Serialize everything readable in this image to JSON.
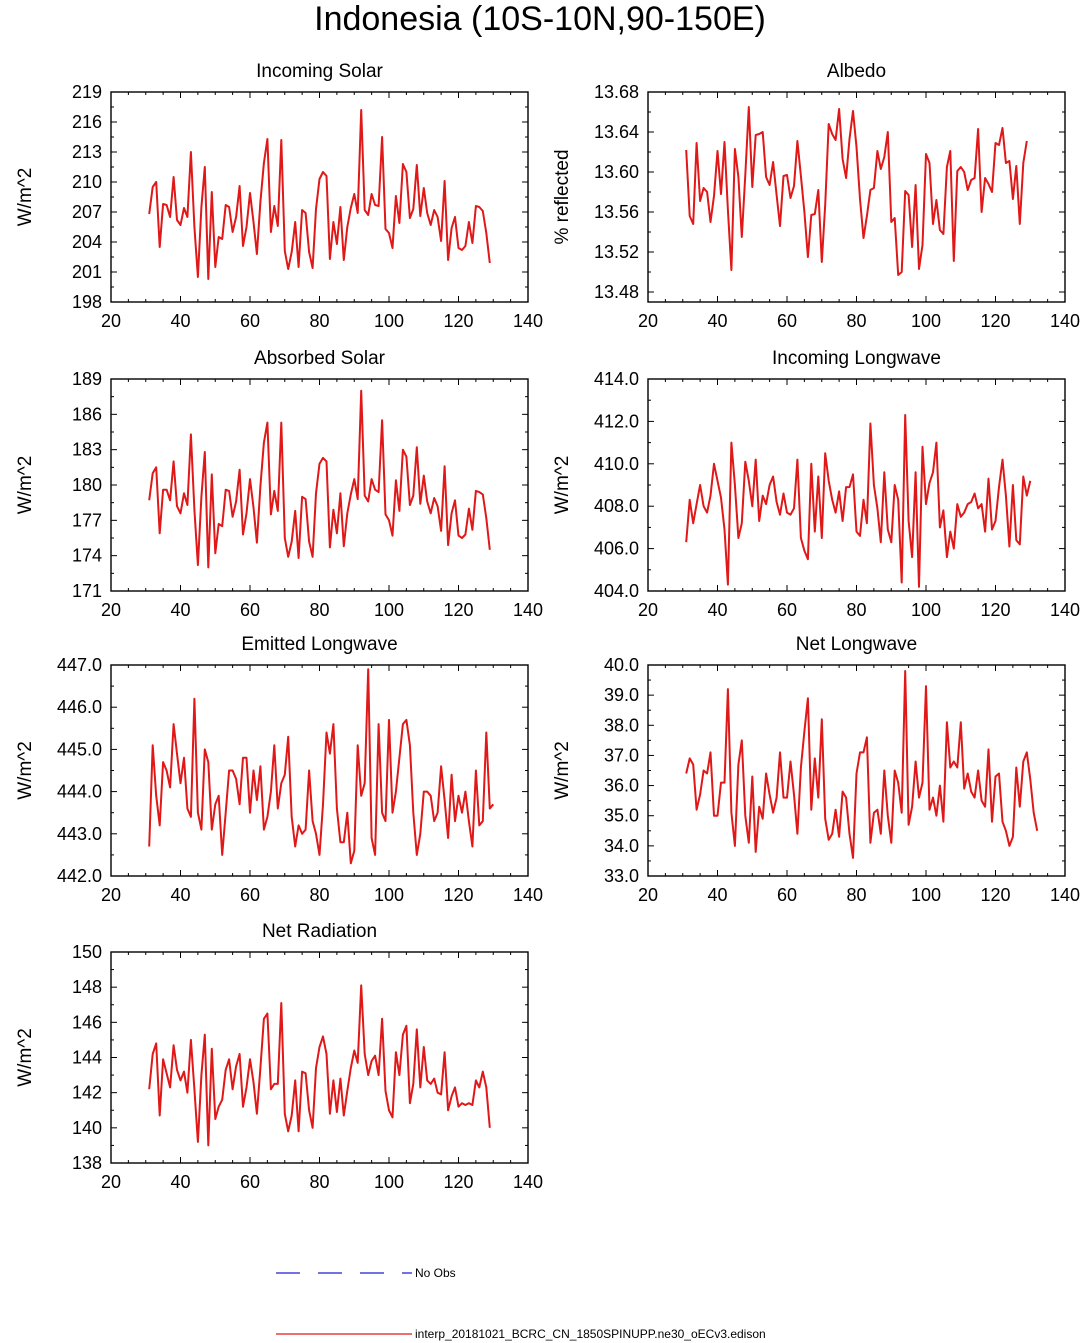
{
  "figure": {
    "title": "Indonesia (10S-10N,90-150E)",
    "legend": [
      {
        "label": "No Obs",
        "color": "#1f1fd0",
        "style": "dashed"
      },
      {
        "label": "interp_20181021_BCRC_CN_1850SPINUPP.ne30_oECv3.edison",
        "color": "#e01818",
        "style": "solid"
      }
    ]
  },
  "chart_data": [
    {
      "type": "line",
      "title": "Incoming Solar",
      "ylabel": "W/m^2",
      "xlabel": "",
      "xlim": [
        20,
        140
      ],
      "ylim": [
        198,
        219
      ],
      "xticks": [
        20,
        40,
        60,
        80,
        100,
        120,
        140
      ],
      "yticks": [
        198,
        201,
        204,
        207,
        210,
        213,
        216,
        219
      ],
      "ytick_labels": [
        "198",
        "201",
        "204",
        "207",
        "210",
        "213",
        "216",
        "219"
      ],
      "series": [
        {
          "name": "interp_20181021_BCRC_CN_1850SPINUPP.ne30_oECv3.edison",
          "x_start": 31,
          "x_step": 1,
          "values": [
            206.8,
            209.5,
            210.0,
            203.5,
            207.8,
            207.7,
            206.5,
            210.5,
            206.2,
            205.7,
            207.4,
            206.5,
            213.0,
            205.5,
            200.5,
            207.5,
            211.5,
            200.3,
            209.0,
            201.5,
            204.5,
            204.3,
            207.7,
            207.5,
            205.0,
            206.5,
            209.6,
            203.6,
            205.5,
            208.9,
            206.0,
            202.8,
            208.0,
            211.9,
            214.3,
            205.0,
            207.6,
            205.6,
            214.2,
            203.1,
            201.3,
            203.0,
            206.0,
            201.5,
            207.2,
            206.9,
            203.0,
            201.4,
            207.3,
            210.3,
            211.0,
            210.6,
            202.3,
            206.0,
            203.8,
            207.5,
            202.2,
            205.5,
            207.4,
            208.8,
            206.9,
            217.2,
            207.2,
            206.7,
            208.8,
            207.7,
            207.6,
            214.5,
            205.3,
            204.9,
            203.4,
            208.6,
            205.9,
            211.8,
            211.0,
            206.4,
            207.3,
            211.7,
            206.6,
            209.4,
            206.9,
            205.7,
            207.2,
            206.5,
            204.1,
            210.1,
            202.2,
            205.4,
            206.5,
            203.4,
            203.2,
            203.6,
            206.0,
            203.9,
            207.6,
            207.5,
            207.1,
            204.9,
            201.9
          ]
        }
      ]
    },
    {
      "type": "line",
      "title": "Albedo",
      "ylabel": "% reflected",
      "xlabel": "",
      "xlim": [
        20,
        140
      ],
      "ylim": [
        13.47,
        13.68
      ],
      "xticks": [
        20,
        40,
        60,
        80,
        100,
        120,
        140
      ],
      "yticks": [
        13.48,
        13.52,
        13.56,
        13.6,
        13.64,
        13.68
      ],
      "ytick_labels": [
        "13.48",
        "13.52",
        "13.56",
        "13.60",
        "13.64",
        "13.68"
      ],
      "series": [
        {
          "name": "interp_20181021_BCRC_CN_1850SPINUPP.ne30_oECv3.edison",
          "x_start": 31,
          "x_step": 1,
          "values": [
            13.622,
            13.556,
            13.548,
            13.629,
            13.571,
            13.584,
            13.58,
            13.55,
            13.576,
            13.621,
            13.578,
            13.63,
            13.562,
            13.502,
            13.623,
            13.595,
            13.535,
            13.597,
            13.665,
            13.585,
            13.637,
            13.638,
            13.64,
            13.595,
            13.587,
            13.61,
            13.577,
            13.546,
            13.596,
            13.597,
            13.574,
            13.586,
            13.631,
            13.596,
            13.56,
            13.515,
            13.557,
            13.558,
            13.582,
            13.51,
            13.567,
            13.648,
            13.638,
            13.632,
            13.663,
            13.613,
            13.594,
            13.633,
            13.661,
            13.625,
            13.573,
            13.534,
            13.556,
            13.582,
            13.584,
            13.621,
            13.603,
            13.615,
            13.64,
            13.55,
            13.554,
            13.497,
            13.5,
            13.581,
            13.577,
            13.525,
            13.587,
            13.503,
            13.527,
            13.618,
            13.609,
            13.548,
            13.572,
            13.542,
            13.538,
            13.605,
            13.621,
            13.511,
            13.601,
            13.605,
            13.6,
            13.582,
            13.592,
            13.594,
            13.643,
            13.56,
            13.594,
            13.588,
            13.58,
            13.629,
            13.627,
            13.644,
            13.609,
            13.611,
            13.573,
            13.606,
            13.548,
            13.609,
            13.631
          ]
        }
      ]
    },
    {
      "type": "line",
      "title": "Absorbed Solar",
      "ylabel": "W/m^2",
      "xlabel": "",
      "xlim": [
        20,
        140
      ],
      "ylim": [
        171,
        189
      ],
      "xticks": [
        20,
        40,
        60,
        80,
        100,
        120,
        140
      ],
      "yticks": [
        171,
        174,
        177,
        180,
        183,
        186,
        189
      ],
      "ytick_labels": [
        "171",
        "174",
        "177",
        "180",
        "183",
        "186",
        "189"
      ],
      "series": [
        {
          "name": "interp_20181021_BCRC_CN_1850SPINUPP.ne30_oECv3.edison",
          "x_start": 31,
          "x_step": 1,
          "values": [
            178.7,
            181.0,
            181.5,
            175.9,
            179.6,
            179.6,
            178.7,
            182.0,
            178.2,
            177.6,
            179.3,
            178.3,
            184.3,
            177.9,
            173.2,
            179.0,
            182.8,
            173.0,
            180.9,
            174.2,
            176.7,
            176.5,
            179.6,
            179.5,
            177.3,
            178.6,
            181.3,
            175.8,
            177.6,
            180.5,
            178.1,
            175.1,
            179.9,
            183.6,
            185.3,
            177.5,
            179.5,
            177.8,
            185.3,
            175.5,
            173.9,
            175.2,
            177.8,
            173.8,
            179.0,
            178.8,
            175.2,
            173.9,
            179.3,
            181.8,
            182.3,
            182.0,
            174.7,
            177.9,
            175.9,
            179.3,
            174.8,
            177.6,
            179.2,
            180.5,
            178.8,
            188.0,
            179.1,
            178.6,
            180.5,
            179.6,
            179.4,
            185.5,
            177.5,
            177.0,
            175.7,
            180.4,
            177.8,
            183.0,
            182.4,
            178.3,
            179.1,
            183.2,
            178.4,
            180.8,
            178.6,
            177.6,
            178.9,
            178.2,
            176.1,
            181.6,
            174.9,
            177.6,
            178.7,
            175.7,
            175.5,
            175.8,
            178.0,
            176.2,
            179.5,
            179.4,
            179.2,
            177.2,
            174.5
          ]
        }
      ]
    },
    {
      "type": "line",
      "title": "Incoming Longwave",
      "ylabel": "W/m^2",
      "xlabel": "",
      "xlim": [
        20,
        140
      ],
      "ylim": [
        404,
        414
      ],
      "xticks": [
        20,
        40,
        60,
        80,
        100,
        120,
        140
      ],
      "yticks": [
        404,
        406,
        408,
        410,
        412,
        414
      ],
      "ytick_labels": [
        "404.0",
        "406.0",
        "408.0",
        "410.0",
        "412.0",
        "414.0"
      ],
      "series": [
        {
          "name": "interp_20181021_BCRC_CN_1850SPINUPP.ne30_oECv3.edison",
          "x_start": 31,
          "x_step": 1,
          "values": [
            406.3,
            408.3,
            407.2,
            408.1,
            409.0,
            408.0,
            407.7,
            408.5,
            410.0,
            409.2,
            408.4,
            406.9,
            404.3,
            411.0,
            409.0,
            406.5,
            407.2,
            410.1,
            409.2,
            408.0,
            410.2,
            407.3,
            408.5,
            408.1,
            409.0,
            409.4,
            408.2,
            407.6,
            408.6,
            407.7,
            407.6,
            407.9,
            410.2,
            406.5,
            405.9,
            405.5,
            410.0,
            406.8,
            409.4,
            406.5,
            410.5,
            409.2,
            408.3,
            407.7,
            408.7,
            407.3,
            408.9,
            408.9,
            409.5,
            406.8,
            406.6,
            408.3,
            407.2,
            411.9,
            409.0,
            407.9,
            406.3,
            409.6,
            406.9,
            406.3,
            409.0,
            408.3,
            404.4,
            412.3,
            407.3,
            405.6,
            409.6,
            404.2,
            410.8,
            408.1,
            409.1,
            409.6,
            411.0,
            407.0,
            407.8,
            405.6,
            406.8,
            406.0,
            408.1,
            407.5,
            407.7,
            408.1,
            408.2,
            408.6,
            407.9,
            408.1,
            406.8,
            409.3,
            406.9,
            407.3,
            408.9,
            410.2,
            408.5,
            406.1,
            409.0,
            406.4,
            406.2,
            409.4,
            408.5,
            409.2
          ]
        }
      ]
    },
    {
      "type": "line",
      "title": "Emitted Longwave",
      "ylabel": "W/m^2",
      "xlabel": "",
      "xlim": [
        20,
        140
      ],
      "ylim": [
        442,
        447
      ],
      "xticks": [
        20,
        40,
        60,
        80,
        100,
        120,
        140
      ],
      "yticks": [
        442,
        443,
        444,
        445,
        446,
        447
      ],
      "ytick_labels": [
        "442.0",
        "443.0",
        "444.0",
        "445.0",
        "446.0",
        "447.0"
      ],
      "series": [
        {
          "name": "interp_20181021_BCRC_CN_1850SPINUPP.ne30_oECv3.edison",
          "x_start": 31,
          "x_step": 1,
          "values": [
            442.7,
            445.1,
            443.9,
            443.2,
            444.7,
            444.5,
            444.1,
            445.6,
            444.9,
            444.2,
            444.8,
            443.6,
            443.4,
            446.2,
            443.5,
            443.1,
            445.0,
            444.7,
            443.1,
            443.7,
            443.9,
            442.5,
            443.5,
            444.5,
            444.5,
            444.3,
            443.7,
            444.8,
            444.8,
            443.5,
            444.5,
            443.8,
            444.6,
            443.1,
            443.4,
            444.0,
            445.1,
            443.6,
            444.2,
            444.4,
            445.3,
            443.4,
            442.7,
            443.2,
            443.0,
            443.1,
            444.5,
            443.3,
            443.0,
            442.5,
            443.7,
            445.4,
            444.9,
            445.6,
            443.6,
            442.8,
            442.8,
            443.5,
            442.3,
            442.6,
            445.1,
            443.9,
            444.2,
            446.9,
            442.9,
            442.5,
            445.6,
            443.5,
            443.3,
            445.7,
            443.5,
            444.0,
            444.8,
            445.6,
            445.7,
            445.1,
            443.5,
            442.5,
            443.0,
            444.0,
            444.0,
            443.9,
            443.3,
            443.5,
            444.6,
            443.8,
            442.9,
            444.4,
            443.3,
            443.9,
            443.5,
            444.0,
            443.3,
            442.7,
            444.5,
            443.2,
            443.3,
            445.4,
            443.6,
            443.7
          ]
        }
      ]
    },
    {
      "type": "line",
      "title": "Net Longwave",
      "ylabel": "W/m^2",
      "xlabel": "",
      "xlim": [
        20,
        140
      ],
      "ylim": [
        33,
        40
      ],
      "xticks": [
        20,
        40,
        60,
        80,
        100,
        120,
        140
      ],
      "yticks": [
        33,
        34,
        35,
        36,
        37,
        38,
        39,
        40
      ],
      "ytick_labels": [
        "33.0",
        "34.0",
        "35.0",
        "36.0",
        "37.0",
        "38.0",
        "39.0",
        "40.0"
      ],
      "series": [
        {
          "name": "interp_20181021_BCRC_CN_1850SPINUPP.ne30_oECv3.edison",
          "x_start": 31,
          "x_step": 1,
          "values": [
            36.4,
            36.9,
            36.7,
            35.2,
            35.7,
            36.5,
            36.4,
            37.1,
            35.0,
            35.0,
            36.1,
            36.1,
            39.2,
            35.1,
            34.0,
            36.7,
            37.5,
            35.0,
            34.1,
            36.3,
            33.8,
            35.3,
            34.9,
            36.4,
            35.7,
            35.1,
            35.6,
            37.1,
            35.6,
            35.6,
            36.8,
            35.7,
            34.4,
            36.6,
            37.8,
            38.9,
            35.2,
            36.9,
            35.6,
            38.2,
            34.9,
            34.2,
            34.4,
            35.2,
            34.3,
            35.8,
            35.6,
            34.4,
            33.6,
            36.4,
            37.1,
            37.1,
            37.6,
            34.1,
            35.1,
            35.2,
            34.4,
            36.5,
            35.0,
            34.1,
            36.5,
            36.1,
            35.1,
            39.8,
            34.7,
            35.3,
            36.8,
            35.6,
            36.1,
            39.3,
            35.2,
            35.6,
            35.0,
            36.0,
            34.8,
            38.1,
            36.6,
            36.8,
            36.6,
            38.1,
            35.9,
            36.4,
            35.8,
            35.6,
            36.5,
            35.5,
            35.3,
            37.2,
            34.8,
            36.3,
            36.4,
            34.8,
            34.5,
            34.0,
            34.3,
            36.6,
            35.3,
            36.8,
            37.1,
            36.2,
            35.1,
            34.5
          ]
        }
      ]
    },
    {
      "type": "line",
      "title": "Net Radiation",
      "ylabel": "W/m^2",
      "xlabel": "",
      "xlim": [
        20,
        140
      ],
      "ylim": [
        138,
        150
      ],
      "xticks": [
        20,
        40,
        60,
        80,
        100,
        120,
        140
      ],
      "yticks": [
        138,
        140,
        142,
        144,
        146,
        148,
        150
      ],
      "ytick_labels": [
        "138",
        "140",
        "142",
        "144",
        "146",
        "148",
        "150"
      ],
      "series": [
        {
          "name": "interp_20181021_BCRC_CN_1850SPINUPP.ne30_oECv3.edison",
          "x_start": 31,
          "x_step": 1,
          "values": [
            142.2,
            144.2,
            144.8,
            140.7,
            143.9,
            143.1,
            142.3,
            144.7,
            143.3,
            142.7,
            143.2,
            142.0,
            145.0,
            142.2,
            139.2,
            143.0,
            145.3,
            139.0,
            144.5,
            140.5,
            141.2,
            141.6,
            143.3,
            143.9,
            142.2,
            143.5,
            144.2,
            141.2,
            142.3,
            143.9,
            142.6,
            140.8,
            143.4,
            146.2,
            146.5,
            142.2,
            142.5,
            142.5,
            147.1,
            140.8,
            139.8,
            140.7,
            142.7,
            139.8,
            143.2,
            143.1,
            141.0,
            140.0,
            143.4,
            144.6,
            145.2,
            144.2,
            140.8,
            142.7,
            140.9,
            142.8,
            140.7,
            142.1,
            143.4,
            144.4,
            143.7,
            148.1,
            144.2,
            143.0,
            143.8,
            144.1,
            143.0,
            146.2,
            142.1,
            141.0,
            140.6,
            144.3,
            143.0,
            145.3,
            145.8,
            141.4,
            142.5,
            145.6,
            142.3,
            144.6,
            142.7,
            142.5,
            142.8,
            142.0,
            141.9,
            144.3,
            141.0,
            141.8,
            142.3,
            141.2,
            141.4,
            141.3,
            141.4,
            141.3,
            142.7,
            142.3,
            143.2,
            142.3,
            140.0
          ]
        }
      ]
    }
  ]
}
